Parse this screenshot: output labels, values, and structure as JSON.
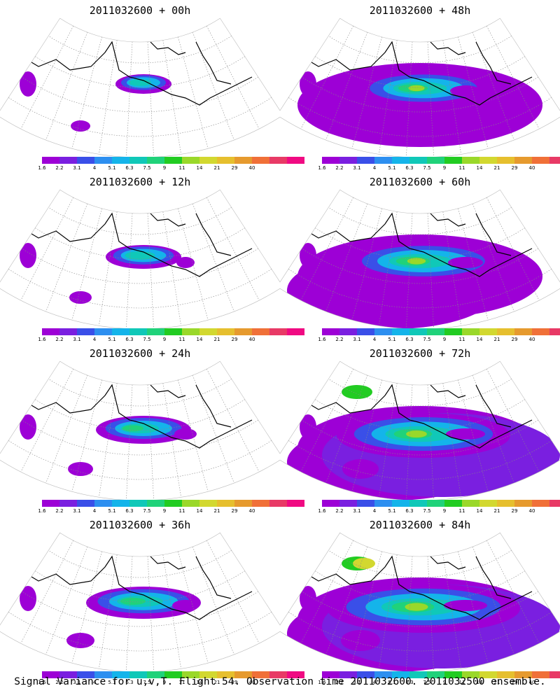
{
  "panels": [
    {
      "title": "2011032600 + 00h",
      "level": 0
    },
    {
      "title": "2011032600 + 48h",
      "level": 4
    },
    {
      "title": "2011032600 + 12h",
      "level": 1
    },
    {
      "title": "2011032600 + 60h",
      "level": 5
    },
    {
      "title": "2011032600 + 24h",
      "level": 2
    },
    {
      "title": "2011032600 + 72h",
      "level": 6
    },
    {
      "title": "2011032600 + 36h",
      "level": 3
    },
    {
      "title": "2011032600 + 84h",
      "level": 7
    }
  ],
  "colorbar": {
    "colors": [
      "#9d00d6",
      "#7a1fe0",
      "#3a4fe8",
      "#2d8ff0",
      "#14b4ea",
      "#10c8b8",
      "#20d27a",
      "#22cc22",
      "#9ad82a",
      "#d2d830",
      "#e6bf2e",
      "#e69a2e",
      "#f07038",
      "#e83a66",
      "#f00a82"
    ],
    "labels": [
      "1.6",
      "2.2",
      "3.1",
      "4",
      "5.1",
      "6.3",
      "7.5",
      "9",
      "11",
      "14",
      "21",
      "29",
      "40"
    ]
  },
  "footer": "Signal Variance for u,v,T. Flight 54. Observation time 2011032600. 2011032500 ensemble."
}
